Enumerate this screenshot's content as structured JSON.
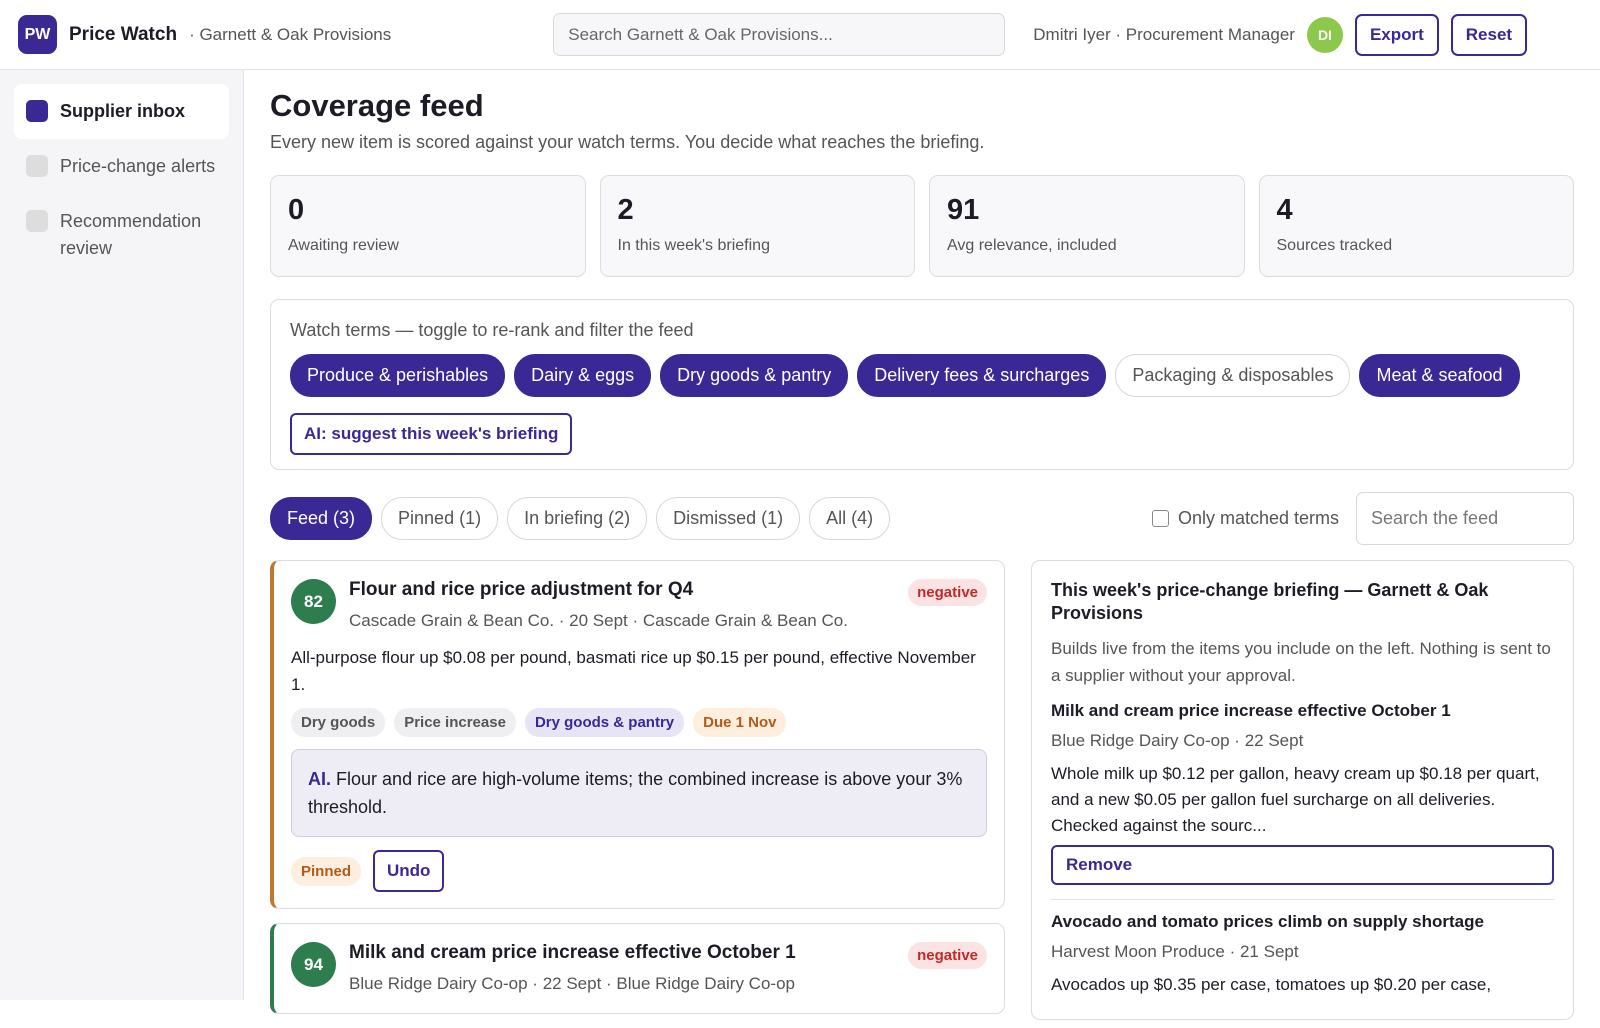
{
  "header": {
    "logo": "PW",
    "app_name": "Price Watch",
    "org": "· Garnett & Oak Provisions",
    "search_placeholder": "Search Garnett & Oak Provisions...",
    "user": "Dmitri Iyer · Procurement Manager",
    "avatar": "DI",
    "export": "Export",
    "reset": "Reset"
  },
  "sidebar": {
    "items": [
      "Supplier inbox",
      "Price-change alerts",
      "Recommendation review"
    ]
  },
  "main": {
    "title": "Coverage feed",
    "subtitle": "Every new item is scored against your watch terms. You decide what reaches the briefing.",
    "stats": [
      {
        "value": 0,
        "label": "Awaiting review"
      },
      {
        "value": 2,
        "label": "In this week's briefing"
      },
      {
        "value": 91,
        "label": "Avg relevance, included"
      },
      {
        "value": 4,
        "label": "Sources tracked"
      }
    ],
    "watch_terms": {
      "heading": "Watch terms — toggle to re-rank and filter the feed",
      "terms": [
        "Produce & perishables",
        "Dairy & eggs",
        "Dry goods & pantry",
        "Delivery fees & surcharges",
        "Packaging & disposables",
        "Meat & seafood"
      ],
      "ai_button": "AI: suggest this week's briefing"
    },
    "tabs": [
      "Feed (3)",
      "Pinned (1)",
      "In briefing (2)",
      "Dismissed (1)",
      "All (4)"
    ],
    "only_matched": "Only matched terms",
    "feed_search_placeholder": "Search the feed"
  },
  "feed": [
    {
      "score": 82,
      "title": "Flour and rice price adjustment for Q4",
      "meta": "Cascade Grain & Bean Co. · 20 Sept · Cascade Grain & Bean Co.",
      "sentiment": "negative",
      "body": "All-purpose flour up $0.08 per pound, basmati rice up $0.15 per pound, effective November 1.",
      "tags": [
        "Dry goods",
        "Price increase",
        "Dry goods & pantry",
        "Due 1 Nov"
      ],
      "ai_label": "AI.",
      "ai_note": "Flour and rice are high-volume items; the combined increase is above your 3% threshold.",
      "status": "Pinned",
      "action": "Undo"
    },
    {
      "score": 94,
      "title": "Milk and cream price increase effective October 1",
      "meta": "Blue Ridge Dairy Co-op · 22 Sept · Blue Ridge Dairy Co-op",
      "sentiment": "negative"
    }
  ],
  "briefing": {
    "title": "This week's price-change briefing — Garnett & Oak Provisions",
    "description": "Builds live from the items you include on the left. Nothing is sent to a supplier without your approval.",
    "items": [
      {
        "title": "Milk and cream price increase effective October 1",
        "meta": "Blue Ridge Dairy Co-op · 22 Sept",
        "body": "Whole milk up $0.12 per gallon, heavy cream up $0.18 per quart, and a new $0.05 per gallon fuel surcharge on all deliveries. Checked against the sourc...",
        "action": "Remove"
      },
      {
        "title": "Avocado and tomato prices climb on supply shortage",
        "meta": "Harvest Moon Produce · 21 Sept",
        "body": "Avocados up $0.35 per case, tomatoes up $0.20 per case,"
      }
    ]
  }
}
